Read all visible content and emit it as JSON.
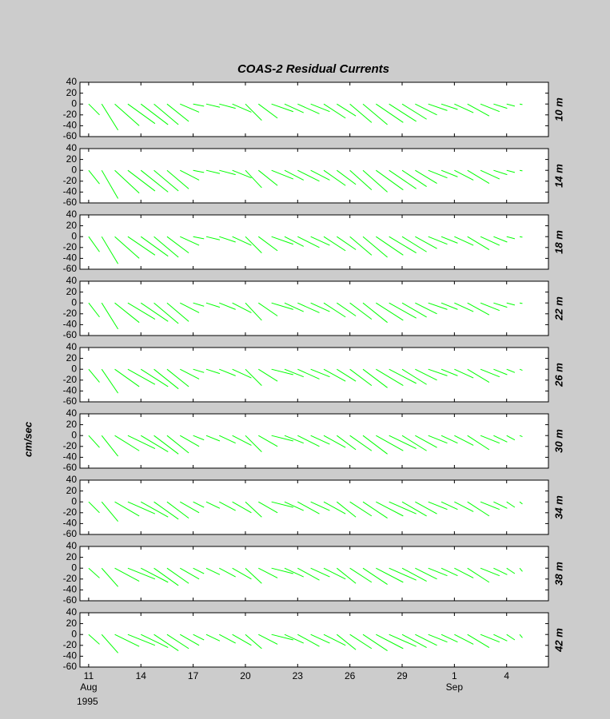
{
  "chart_data": {
    "type": "stick",
    "title": "COAS-2  Residual Currents",
    "ylabel": "cm/sec",
    "x": [
      11,
      11.75,
      12.5,
      13.25,
      14,
      14.75,
      15.5,
      16.25,
      17,
      17.75,
      18.5,
      19.25,
      20,
      20.75,
      21.5,
      22.25,
      23,
      23.75,
      24.5,
      25.25,
      26,
      26.75,
      27.5,
      28.25,
      29,
      29.75,
      30.5,
      31.25,
      32,
      32.75,
      33.5,
      34.25,
      35,
      35.75
    ],
    "xlim": [
      10.5,
      37.4
    ],
    "xticks": [
      11,
      14,
      17,
      20,
      23,
      26,
      29,
      {
        "value": 32,
        "label": "1"
      },
      {
        "value": 35,
        "label": "4"
      }
    ],
    "month_labels": [
      {
        "value": 11,
        "label": "Aug"
      },
      {
        "value": 32,
        "label": "Sep"
      }
    ],
    "year": "1995",
    "ylim": [
      -60,
      40
    ],
    "yticks": [
      40,
      20,
      0,
      -20,
      -40,
      -60
    ],
    "color": "#00ff00",
    "panels": [
      {
        "name": "10 m",
        "v": [
          -20,
          -48,
          -40,
          -36,
          -38,
          -38,
          -32,
          -15,
          -4,
          -6,
          -8,
          -15,
          -30,
          -26,
          -14,
          -16,
          -18,
          -14,
          -26,
          -22,
          -34,
          -38,
          -34,
          -32,
          -28,
          -20,
          -12,
          -10,
          -16,
          -22,
          -14,
          -8,
          -4,
          -1
        ],
        "u": [
          20,
          30,
          45,
          50,
          50,
          45,
          40,
          35,
          20,
          25,
          30,
          35,
          30,
          35,
          40,
          35,
          40,
          35,
          40,
          35,
          40,
          45,
          50,
          50,
          45,
          40,
          35,
          30,
          35,
          40,
          35,
          25,
          15,
          5
        ]
      },
      {
        "name": "14 m",
        "v": [
          -25,
          -52,
          -42,
          -38,
          -40,
          -38,
          -34,
          -18,
          -4,
          -6,
          -8,
          -14,
          -32,
          -28,
          -16,
          -18,
          -20,
          -18,
          -28,
          -26,
          -36,
          -40,
          -36,
          -34,
          -30,
          -24,
          -14,
          -12,
          -18,
          -24,
          -16,
          -8,
          -4,
          -1
        ],
        "u": [
          20,
          30,
          45,
          50,
          50,
          45,
          40,
          35,
          20,
          25,
          30,
          35,
          30,
          35,
          40,
          35,
          40,
          35,
          40,
          35,
          40,
          45,
          50,
          50,
          45,
          40,
          35,
          30,
          35,
          40,
          35,
          25,
          15,
          5
        ]
      },
      {
        "name": "18 m",
        "v": [
          -28,
          -50,
          -40,
          -34,
          -36,
          -38,
          -30,
          -16,
          -4,
          -6,
          -10,
          -16,
          -30,
          -26,
          -14,
          -18,
          -20,
          -16,
          -26,
          -24,
          -34,
          -38,
          -34,
          -30,
          -28,
          -22,
          -14,
          -12,
          -16,
          -24,
          -16,
          -10,
          -4,
          -1
        ],
        "u": [
          20,
          30,
          45,
          50,
          50,
          45,
          40,
          35,
          20,
          25,
          30,
          35,
          30,
          35,
          40,
          35,
          40,
          35,
          40,
          35,
          40,
          45,
          50,
          50,
          45,
          40,
          35,
          30,
          35,
          40,
          35,
          25,
          15,
          5
        ]
      },
      {
        "name": "22 m",
        "v": [
          -26,
          -48,
          -36,
          -30,
          -34,
          -38,
          -34,
          -18,
          -6,
          -8,
          -12,
          -18,
          -32,
          -24,
          -12,
          -16,
          -18,
          -16,
          -26,
          -24,
          -30,
          -36,
          -32,
          -28,
          -26,
          -20,
          -12,
          -12,
          -16,
          -22,
          -14,
          -8,
          -4,
          -1
        ],
        "u": [
          20,
          30,
          45,
          50,
          50,
          45,
          40,
          35,
          20,
          25,
          30,
          35,
          30,
          35,
          40,
          35,
          40,
          35,
          40,
          35,
          40,
          45,
          50,
          50,
          45,
          40,
          35,
          30,
          35,
          40,
          35,
          25,
          15,
          5
        ]
      },
      {
        "name": "26 m",
        "v": [
          -24,
          -44,
          -32,
          -28,
          -32,
          -36,
          -32,
          -18,
          -6,
          -8,
          -12,
          -16,
          -30,
          -22,
          -10,
          -14,
          -18,
          -14,
          -22,
          -22,
          -30,
          -34,
          -30,
          -26,
          -28,
          -20,
          -12,
          -12,
          -16,
          -24,
          -14,
          -10,
          -6,
          -2
        ],
        "u": [
          20,
          30,
          45,
          50,
          50,
          45,
          40,
          35,
          20,
          25,
          30,
          35,
          30,
          35,
          40,
          35,
          40,
          35,
          40,
          35,
          40,
          45,
          50,
          50,
          45,
          40,
          35,
          30,
          35,
          40,
          35,
          25,
          15,
          5
        ]
      },
      {
        "name": "30 m",
        "v": [
          -22,
          -38,
          -28,
          -24,
          -30,
          -34,
          -32,
          -20,
          -8,
          -10,
          -14,
          -18,
          -30,
          -20,
          -10,
          -14,
          -20,
          -16,
          -22,
          -26,
          -28,
          -34,
          -28,
          -24,
          -28,
          -22,
          -14,
          -14,
          -18,
          -26,
          -14,
          -12,
          -8,
          -2
        ],
        "u": [
          20,
          30,
          45,
          50,
          50,
          45,
          40,
          35,
          20,
          25,
          30,
          35,
          30,
          35,
          40,
          35,
          40,
          35,
          40,
          35,
          40,
          45,
          50,
          50,
          45,
          40,
          35,
          30,
          35,
          40,
          35,
          25,
          15,
          5
        ]
      },
      {
        "name": "34 m",
        "v": [
          -20,
          -36,
          -26,
          -22,
          -28,
          -32,
          -30,
          -20,
          -10,
          -12,
          -16,
          -20,
          -28,
          -20,
          -10,
          -16,
          -22,
          -16,
          -22,
          -28,
          -26,
          -30,
          -26,
          -22,
          -26,
          -22,
          -14,
          -14,
          -18,
          -26,
          -14,
          -12,
          -10,
          -4
        ],
        "u": [
          20,
          30,
          45,
          50,
          50,
          45,
          40,
          35,
          20,
          25,
          30,
          35,
          30,
          35,
          40,
          35,
          40,
          35,
          40,
          35,
          40,
          45,
          50,
          50,
          45,
          40,
          35,
          30,
          35,
          40,
          35,
          25,
          15,
          5
        ]
      },
      {
        "name": "38 m",
        "v": [
          -18,
          -34,
          -24,
          -20,
          -26,
          -32,
          -28,
          -20,
          -10,
          -12,
          -16,
          -20,
          -28,
          -18,
          -10,
          -16,
          -22,
          -16,
          -20,
          -28,
          -26,
          -30,
          -26,
          -22,
          -24,
          -20,
          -14,
          -14,
          -18,
          -26,
          -14,
          -12,
          -10,
          -6
        ],
        "u": [
          20,
          30,
          45,
          50,
          50,
          45,
          40,
          35,
          20,
          25,
          30,
          35,
          30,
          35,
          40,
          35,
          40,
          35,
          40,
          35,
          40,
          45,
          50,
          50,
          45,
          40,
          35,
          30,
          35,
          40,
          35,
          25,
          15,
          5
        ]
      },
      {
        "name": "42 m",
        "v": [
          -18,
          -34,
          -22,
          -20,
          -24,
          -30,
          -26,
          -20,
          -10,
          -12,
          -16,
          -20,
          -26,
          -18,
          -10,
          -16,
          -22,
          -16,
          -20,
          -28,
          -26,
          -30,
          -26,
          -22,
          -24,
          -20,
          -14,
          -14,
          -18,
          -24,
          -14,
          -12,
          -10,
          -6
        ],
        "u": [
          20,
          30,
          45,
          50,
          50,
          45,
          40,
          35,
          20,
          25,
          30,
          35,
          30,
          35,
          40,
          35,
          40,
          35,
          40,
          35,
          40,
          45,
          50,
          50,
          45,
          40,
          35,
          30,
          35,
          40,
          35,
          25,
          15,
          5
        ]
      }
    ]
  }
}
